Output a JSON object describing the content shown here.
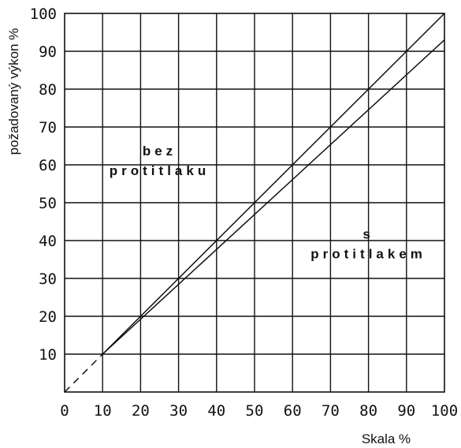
{
  "chart_data": {
    "type": "line",
    "xlabel": "Skala %",
    "ylabel": "požadovaný výkon %",
    "xlim": [
      0,
      100
    ],
    "ylim": [
      0,
      100
    ],
    "grid": true,
    "x_ticks": [
      "0",
      "10",
      "20",
      "30",
      "40",
      "50",
      "60",
      "70",
      "80",
      "90",
      "100"
    ],
    "y_ticks": [
      "10",
      "20",
      "30",
      "40",
      "50",
      "60",
      "70",
      "80",
      "90",
      "100"
    ],
    "series": [
      {
        "name": "bez protitlaku",
        "x": [
          10,
          100
        ],
        "y": [
          10,
          100
        ],
        "style": "solid"
      },
      {
        "name": "s protitlakem",
        "x": [
          10,
          100
        ],
        "y": [
          10,
          93
        ],
        "style": "solid"
      },
      {
        "name": "",
        "x": [
          0,
          10
        ],
        "y": [
          0,
          10
        ],
        "style": "dashed"
      }
    ],
    "annotations": [
      {
        "lines": [
          "bez",
          "protitlaku"
        ],
        "x": 25,
        "y": 60
      },
      {
        "lines": [
          "s",
          "protitlakem"
        ],
        "x": 80,
        "y": 38
      }
    ]
  }
}
